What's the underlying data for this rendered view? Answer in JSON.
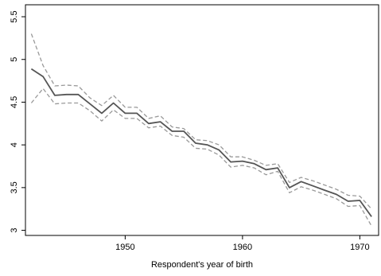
{
  "chart_data": {
    "type": "line",
    "title": "",
    "xlabel": "Respondent's year of birth",
    "ylabel": "",
    "xlim": [
      1941.5,
      1971.6
    ],
    "ylim": [
      2.94,
      5.64
    ],
    "x_ticks": [
      1950,
      1960,
      1970
    ],
    "y_ticks": [
      3,
      3.5,
      4,
      4.5,
      5,
      5.5
    ],
    "x_tick_labels": [
      "1950",
      "1960",
      "1970"
    ],
    "y_tick_labels": [
      "3",
      "3.5",
      "4",
      "4.5",
      "5",
      "5.5"
    ],
    "grid": false,
    "legend": "none",
    "x": [
      1942,
      1943,
      1944,
      1945,
      1946,
      1947,
      1948,
      1949,
      1950,
      1951,
      1952,
      1953,
      1954,
      1955,
      1956,
      1957,
      1958,
      1959,
      1960,
      1961,
      1962,
      1963,
      1964,
      1965,
      1966,
      1967,
      1968,
      1969,
      1970,
      1971
    ],
    "series": [
      {
        "role": "estimate",
        "color": "#555555",
        "style": "solid",
        "values": [
          4.89,
          4.8,
          4.58,
          4.59,
          4.59,
          4.48,
          4.37,
          4.49,
          4.37,
          4.37,
          4.25,
          4.27,
          4.16,
          4.16,
          4.02,
          4.0,
          3.94,
          3.8,
          3.81,
          3.78,
          3.71,
          3.73,
          3.5,
          3.57,
          3.52,
          3.47,
          3.42,
          3.34,
          3.35,
          3.16
        ]
      },
      {
        "role": "upper-bound",
        "color": "#999999",
        "style": "dashed",
        "values": [
          5.3,
          4.93,
          4.69,
          4.7,
          4.69,
          4.55,
          4.46,
          4.58,
          4.44,
          4.44,
          4.31,
          4.34,
          4.21,
          4.19,
          4.06,
          4.05,
          4.0,
          3.86,
          3.86,
          3.82,
          3.76,
          3.78,
          3.56,
          3.62,
          3.58,
          3.53,
          3.48,
          3.41,
          3.4,
          3.25
        ]
      },
      {
        "role": "lower-bound",
        "color": "#999999",
        "style": "dashed",
        "values": [
          4.49,
          4.66,
          4.48,
          4.49,
          4.49,
          4.4,
          4.28,
          4.41,
          4.31,
          4.31,
          4.2,
          4.22,
          4.11,
          4.09,
          3.96,
          3.95,
          3.88,
          3.74,
          3.76,
          3.73,
          3.65,
          3.69,
          3.44,
          3.51,
          3.47,
          3.42,
          3.37,
          3.28,
          3.29,
          3.05
        ]
      }
    ]
  }
}
